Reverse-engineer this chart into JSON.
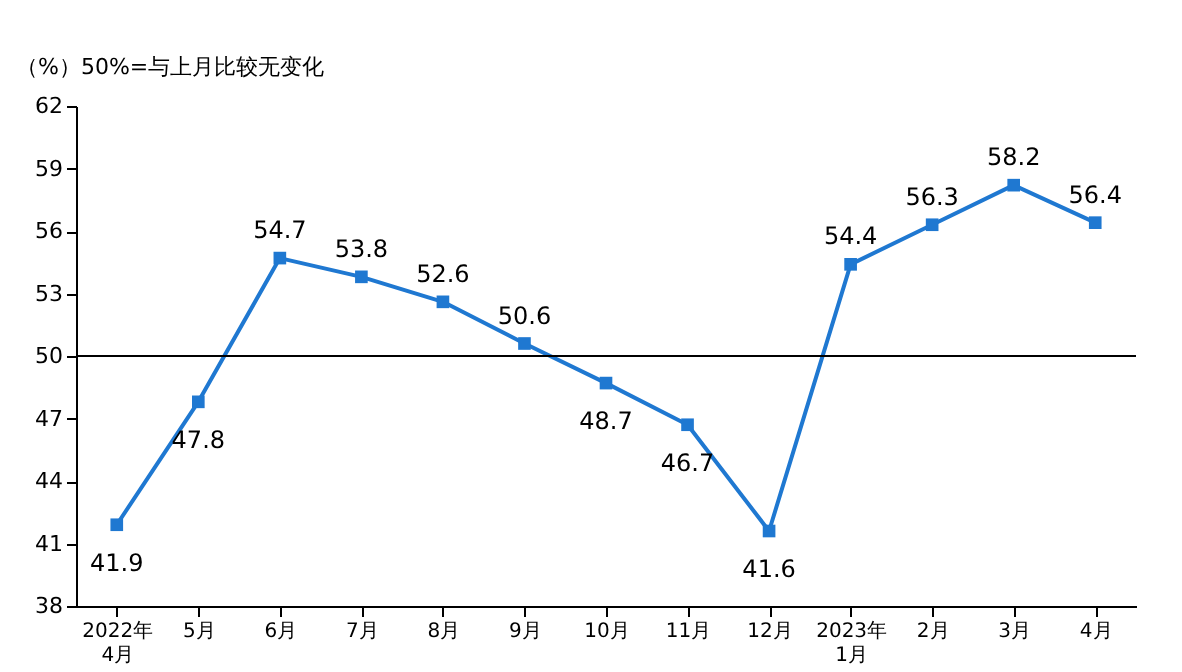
{
  "chart_data": {
    "type": "line",
    "annotations": [
      "（%）50%=与上月比较无变化"
    ],
    "categories": [
      "2022年\n4月",
      "5月",
      "6月",
      "7月",
      "8月",
      "9月",
      "10月",
      "11月",
      "12月",
      "2023年\n1月",
      "2月",
      "3月",
      "4月"
    ],
    "series": [
      {
        "color": "#1f78d1",
        "values": [
          41.9,
          47.8,
          54.7,
          53.8,
          52.6,
          50.6,
          48.7,
          46.7,
          41.6,
          54.4,
          56.3,
          58.2,
          56.4
        ]
      }
    ],
    "ylim": [
      38,
      62
    ],
    "yticks": [
      38,
      41,
      44,
      47,
      50,
      53,
      56,
      59,
      62
    ],
    "ref_lines": [
      {
        "axis": "y",
        "value": 50,
        "color": "#000000"
      }
    ],
    "data_labels": true,
    "marker": "square",
    "line_style": "solid",
    "grid": false
  }
}
